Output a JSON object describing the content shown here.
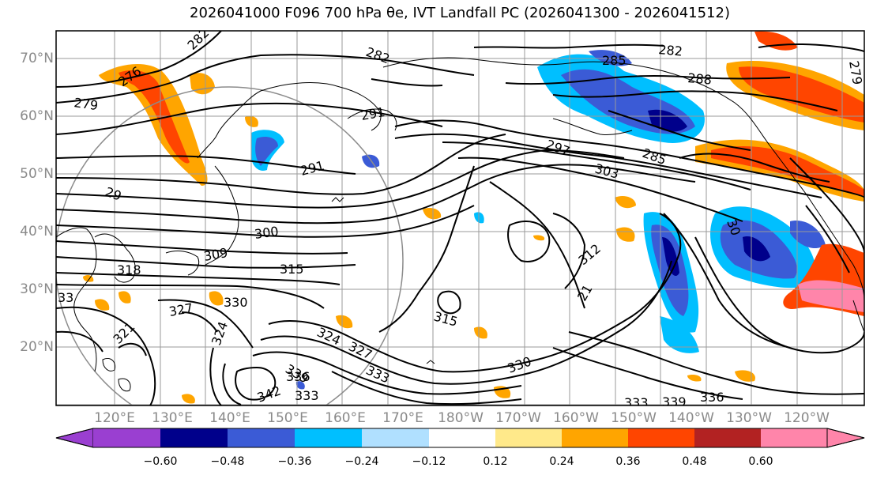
{
  "title": "2026041000 F096 700 hPa θe, IVT Landfall PC (2026041300 - 2026041512)",
  "map": {
    "lat_ticks": [
      "70°N",
      "60°N",
      "50°N",
      "40°N",
      "30°N",
      "20°N"
    ],
    "lon_ticks": [
      "120°E",
      "130°E",
      "140°E",
      "150°E",
      "160°E",
      "170°E",
      "180°W",
      "170°W",
      "160°W",
      "150°W",
      "140°W",
      "130°W",
      "120°W"
    ],
    "contour_labels": [
      "282",
      "282",
      "282",
      "276",
      "279",
      "285",
      "288",
      "291",
      "291",
      "297",
      "285",
      "303",
      "29",
      "300",
      "309",
      "315",
      "318",
      "330",
      "327",
      "324",
      "321",
      "312",
      "30",
      "315",
      "324",
      "327",
      "333",
      "339",
      "336",
      "342",
      "333",
      "330",
      "333",
      "339",
      "336",
      "33",
      "21",
      "279"
    ],
    "colors": {
      "coast": "#000000",
      "grid": "#9a9a9a"
    }
  },
  "colorbar": {
    "tick_labels": [
      "−0.60",
      "−0.48",
      "−0.36",
      "−0.24",
      "−0.12",
      "0.12",
      "0.24",
      "0.36",
      "0.48",
      "0.60"
    ],
    "colors": [
      "#9a3fd1",
      "#00008b",
      "#3b5bd6",
      "#00bfff",
      "#b0e0ff",
      "#ffffff",
      "#ffe98a",
      "#ffa500",
      "#ff4500",
      "#b22222",
      "#ff85aa"
    ]
  }
}
